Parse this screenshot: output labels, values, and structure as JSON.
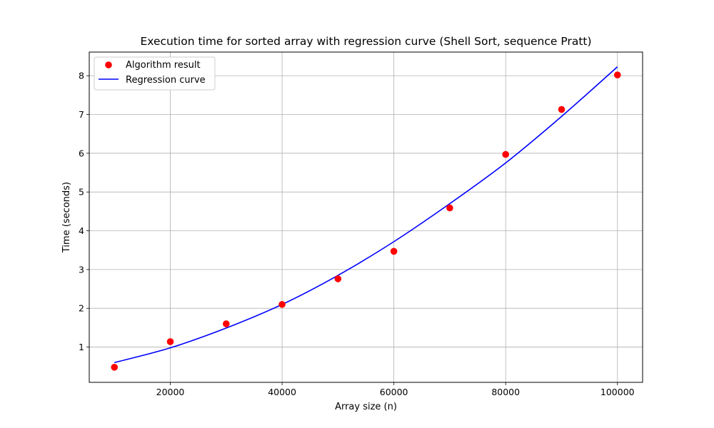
{
  "chart_data": {
    "type": "scatter",
    "title": "Execution time for sorted array with regression curve (Shell Sort, sequence Pratt)",
    "xlabel": "Array size (n)",
    "ylabel": "Time (seconds)",
    "xlim": [
      5500,
      104500
    ],
    "ylim": [
      0.09,
      8.61
    ],
    "x_ticks": [
      20000,
      40000,
      60000,
      80000,
      100000
    ],
    "y_ticks": [
      1,
      2,
      3,
      4,
      5,
      6,
      7,
      8
    ],
    "grid": true,
    "legend_position": "top-left",
    "series": [
      {
        "name": "Algorithm result",
        "kind": "scatter",
        "color": "#ff0000",
        "x": [
          10000,
          20000,
          30000,
          40000,
          50000,
          60000,
          70000,
          80000,
          90000,
          100000
        ],
        "y": [
          0.48,
          1.14,
          1.6,
          2.1,
          2.76,
          3.47,
          4.59,
          5.97,
          7.13,
          8.02
        ]
      },
      {
        "name": "Regression curve",
        "kind": "line",
        "color": "#0000ff",
        "x": [
          10000,
          20000,
          30000,
          40000,
          50000,
          60000,
          70000,
          80000,
          90000,
          100000
        ],
        "y": [
          0.6,
          0.98,
          1.49,
          2.1,
          2.85,
          3.72,
          4.7,
          5.75,
          6.95,
          8.23
        ]
      }
    ]
  }
}
